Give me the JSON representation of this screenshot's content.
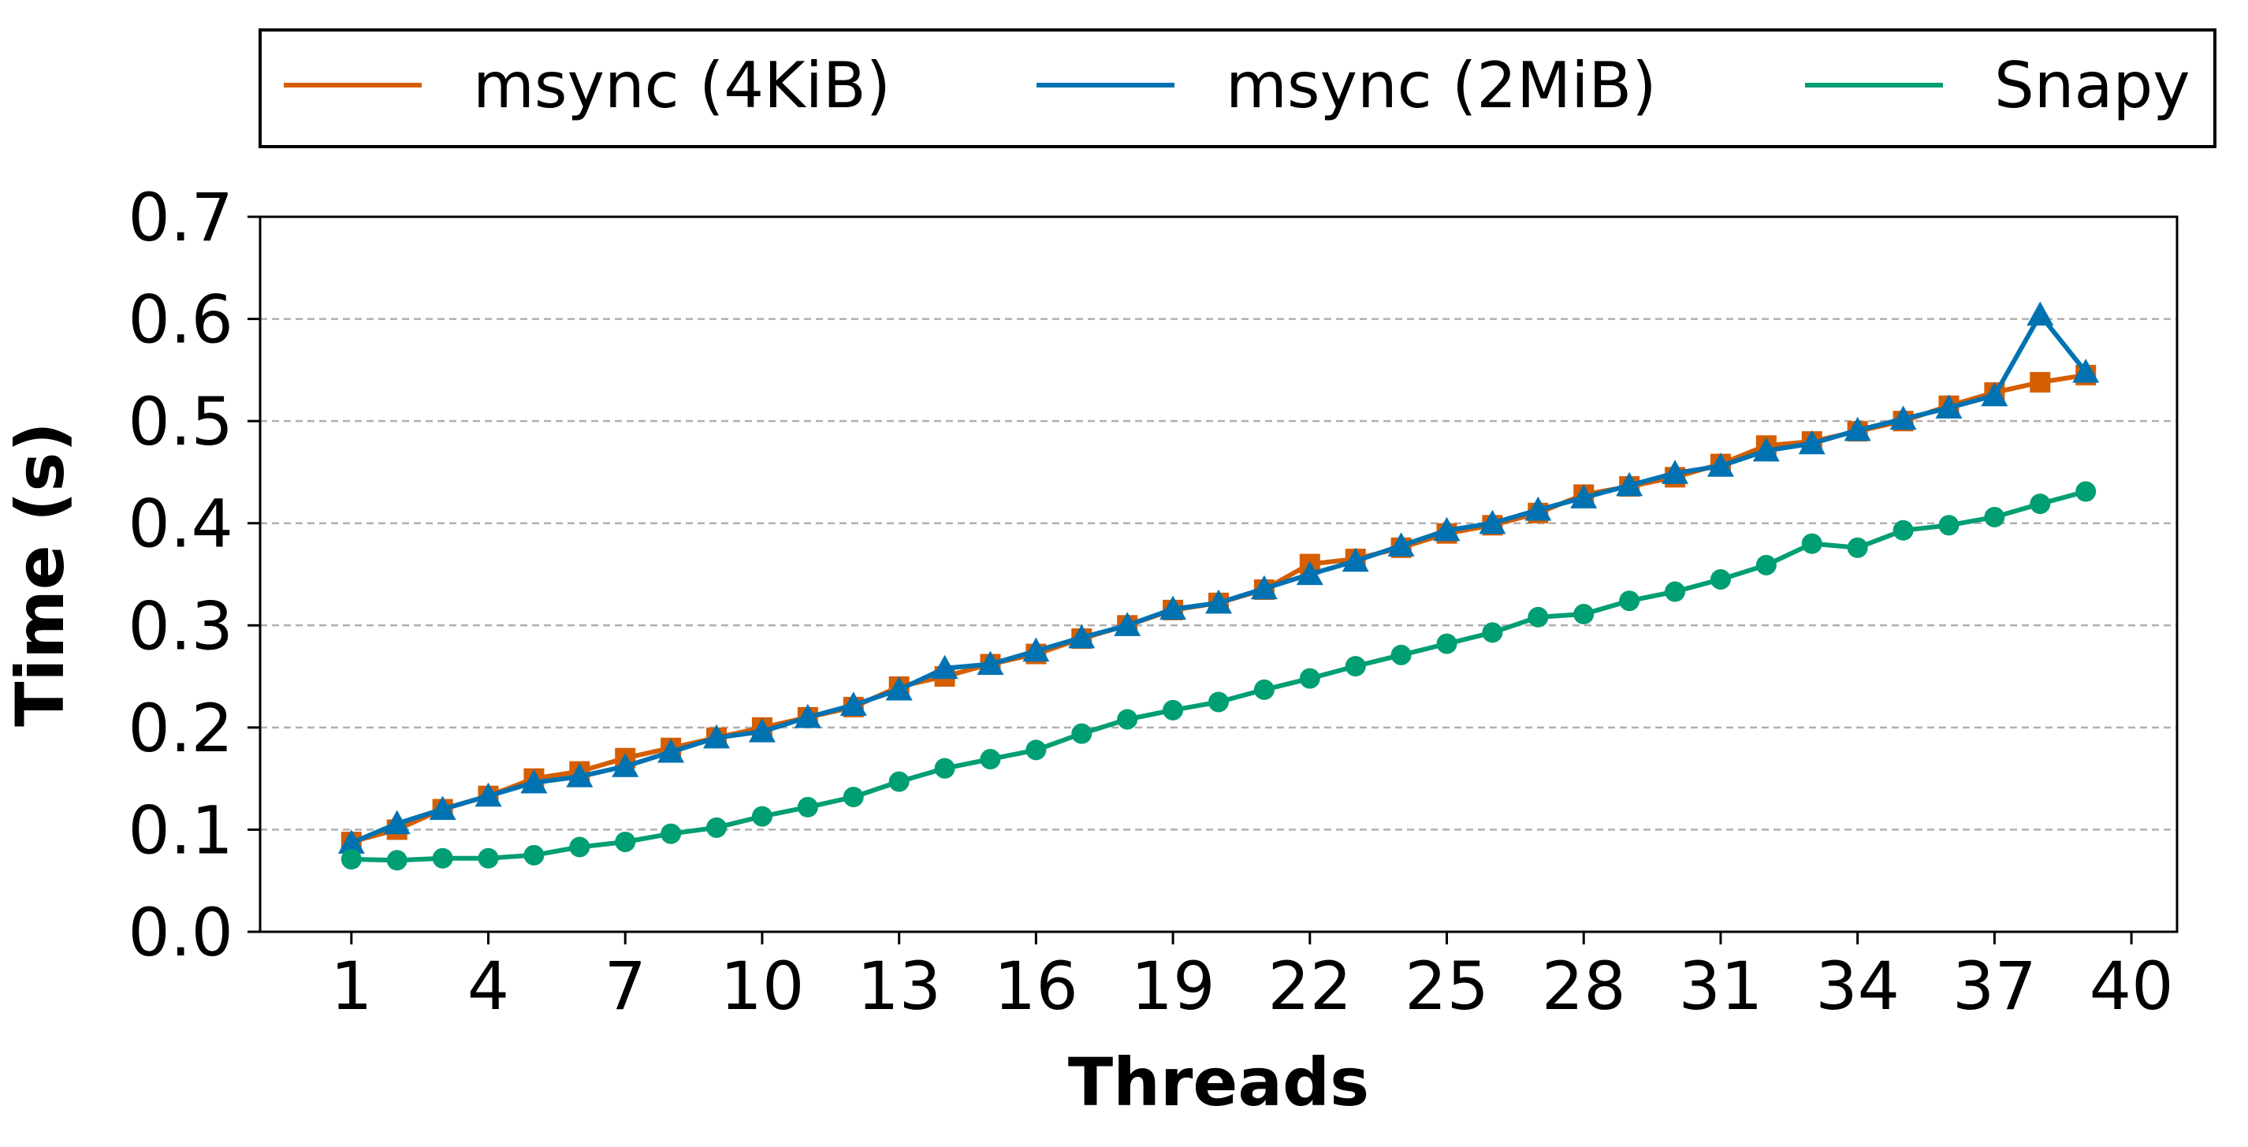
{
  "chart_data": {
    "type": "line",
    "xlabel": "Threads",
    "ylabel": "Time (s)",
    "xlim": [
      -1,
      41
    ],
    "ylim": [
      0,
      0.7
    ],
    "xticks": [
      1,
      4,
      7,
      10,
      13,
      16,
      19,
      22,
      25,
      28,
      31,
      34,
      37,
      40
    ],
    "yticks": [
      0.0,
      0.1,
      0.2,
      0.3,
      0.4,
      0.5,
      0.6,
      0.7
    ],
    "ytick_labels": [
      "0.0",
      "0.1",
      "0.2",
      "0.3",
      "0.4",
      "0.5",
      "0.6",
      "0.7"
    ],
    "grid": "horizontal dashed",
    "legend_position": "top, outside plot",
    "x": [
      1,
      2,
      3,
      4,
      5,
      6,
      7,
      8,
      9,
      10,
      11,
      12,
      13,
      14,
      15,
      16,
      17,
      18,
      19,
      20,
      21,
      22,
      23,
      24,
      25,
      26,
      27,
      28,
      29,
      30,
      31,
      32,
      33,
      34,
      35,
      36,
      37,
      38,
      39
    ],
    "series": [
      {
        "name": "msync (4KiB)",
        "color": "#d55e00",
        "marker": "square",
        "values": [
          0.088,
          0.1,
          0.12,
          0.133,
          0.15,
          0.157,
          0.17,
          0.18,
          0.19,
          0.2,
          0.21,
          0.22,
          0.24,
          0.25,
          0.262,
          0.272,
          0.287,
          0.3,
          0.315,
          0.322,
          0.335,
          0.36,
          0.365,
          0.376,
          0.39,
          0.398,
          0.41,
          0.428,
          0.436,
          0.445,
          0.458,
          0.476,
          0.48,
          0.49,
          0.5,
          0.515,
          0.528,
          0.538,
          0.545
        ]
      },
      {
        "name": "msync (2MiB)",
        "color": "#0072b2",
        "marker": "triangle",
        "values": [
          0.087,
          0.106,
          0.12,
          0.133,
          0.146,
          0.152,
          0.162,
          0.176,
          0.19,
          0.196,
          0.21,
          0.222,
          0.237,
          0.258,
          0.262,
          0.275,
          0.288,
          0.3,
          0.316,
          0.322,
          0.336,
          0.35,
          0.363,
          0.378,
          0.393,
          0.4,
          0.413,
          0.425,
          0.437,
          0.449,
          0.456,
          0.471,
          0.478,
          0.491,
          0.502,
          0.513,
          0.525,
          0.604,
          0.548
        ]
      },
      {
        "name": "Snapy",
        "color": "#009e73",
        "marker": "circle",
        "values": [
          0.071,
          0.07,
          0.072,
          0.072,
          0.075,
          0.083,
          0.088,
          0.096,
          0.102,
          0.113,
          0.122,
          0.132,
          0.147,
          0.16,
          0.169,
          0.178,
          0.194,
          0.208,
          0.217,
          0.225,
          0.237,
          0.248,
          0.26,
          0.271,
          0.282,
          0.293,
          0.308,
          0.311,
          0.324,
          0.333,
          0.345,
          0.359,
          0.38,
          0.376,
          0.393,
          0.398,
          0.406,
          0.419,
          0.431
        ]
      }
    ]
  }
}
